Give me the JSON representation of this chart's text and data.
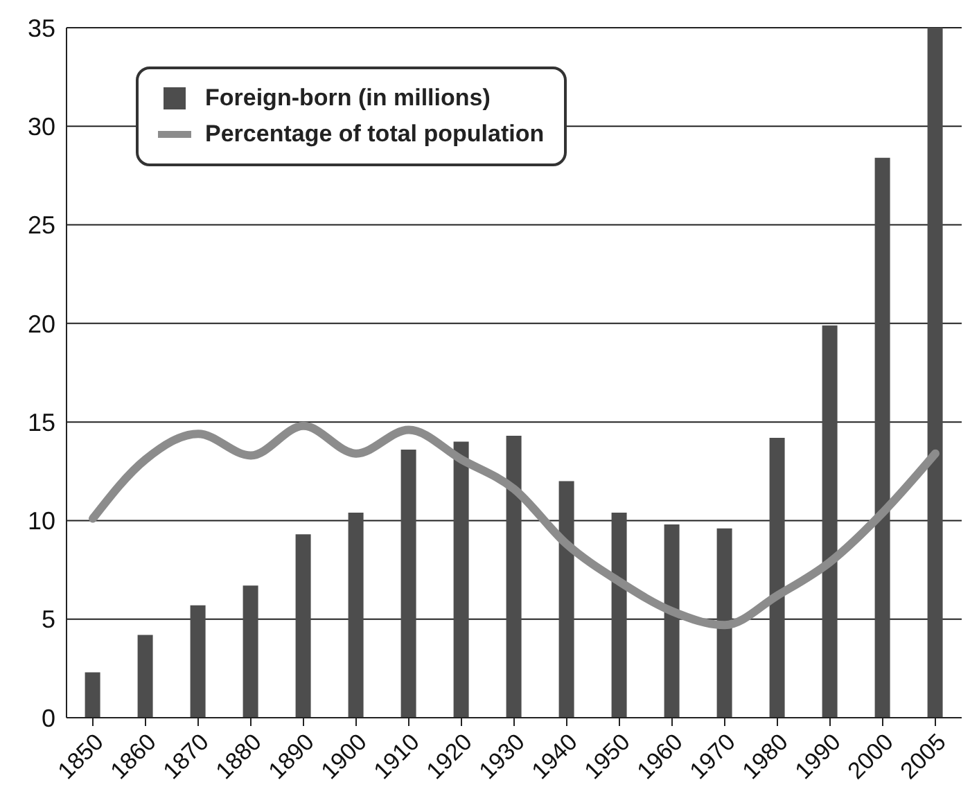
{
  "chart_data": {
    "type": "bar",
    "categories": [
      "1850",
      "1860",
      "1870",
      "1880",
      "1890",
      "1900",
      "1910",
      "1920",
      "1930",
      "1940",
      "1950",
      "1960",
      "1970",
      "1980",
      "1990",
      "2000",
      "2005"
    ],
    "series": [
      {
        "name": "Foreign-born (in millions)",
        "color": "#4d4d4d",
        "values": [
          2.3,
          4.2,
          5.7,
          6.7,
          9.3,
          10.4,
          13.6,
          14,
          14.3,
          12,
          10.4,
          9.8,
          9.6,
          14.2,
          19.9,
          28.4,
          35
        ]
      },
      {
        "name": "Percentage of total population",
        "type": "line",
        "color": "#8c8c8c",
        "values": [
          10.1,
          13.1,
          14.4,
          13.3,
          14.8,
          13.4,
          14.6,
          13.1,
          11.6,
          8.8,
          6.9,
          5.4,
          4.7,
          6.2,
          7.9,
          10.4,
          13.4
        ]
      }
    ],
    "ylim": [
      0,
      35
    ],
    "yticks": [
      0,
      5,
      10,
      15,
      20,
      25,
      30,
      35
    ],
    "grid": "y",
    "legend": "top left",
    "marker": "none",
    "line_style": "solid"
  }
}
